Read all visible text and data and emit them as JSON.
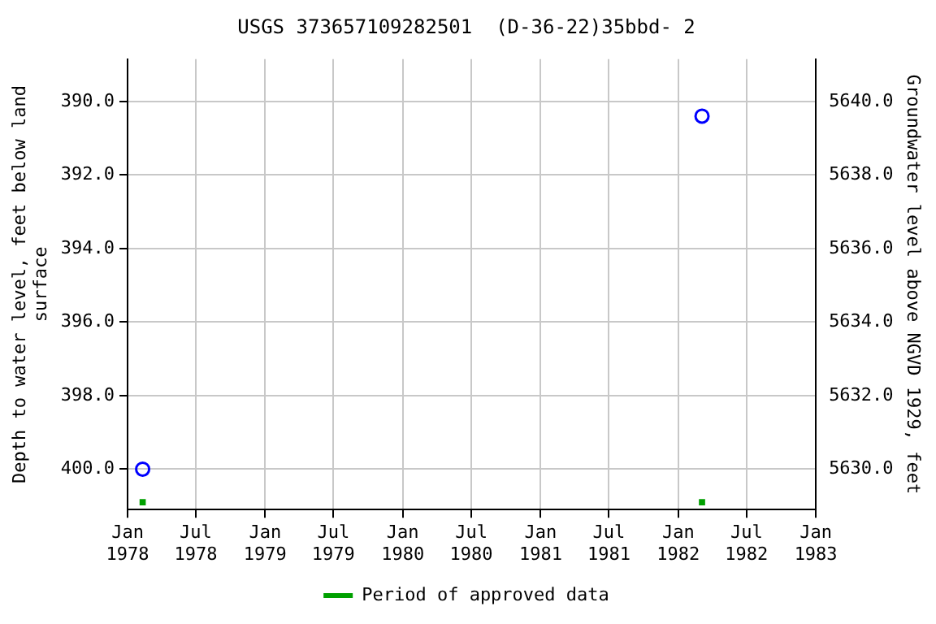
{
  "chart_data": {
    "type": "scatter",
    "title": "USGS 373657109282501  (D-36-22)35bbd- 2",
    "ylabel": "Depth to water level, feet below land surface",
    "y2label": "Groundwater level above NGVD 1929, feet",
    "series": [
      {
        "color": "#0000ff",
        "marker": "circle",
        "x": [
          "1978-02-10",
          "1982-03-05"
        ],
        "values": [
          400.0,
          390.4
        ]
      },
      {
        "name": "Period of approved data",
        "color": "#00a000",
        "marker": "square",
        "x": [
          "1978-02-10",
          "1982-03-05"
        ],
        "values": [
          400.9,
          400.9
        ]
      }
    ],
    "xlim": [
      "1978-01-01",
      "1983-01-01"
    ],
    "xticks": [
      {
        "value": "1978-01-01",
        "label": "Jan 1978"
      },
      {
        "value": "1978-07-01",
        "label": "Jul 1978"
      },
      {
        "value": "1979-01-01",
        "label": "Jan 1979"
      },
      {
        "value": "1979-07-01",
        "label": "Jul 1979"
      },
      {
        "value": "1980-01-01",
        "label": "Jan 1980"
      },
      {
        "value": "1980-07-01",
        "label": "Jul 1980"
      },
      {
        "value": "1981-01-01",
        "label": "Jan 1981"
      },
      {
        "value": "1981-07-01",
        "label": "Jul 1981"
      },
      {
        "value": "1982-01-01",
        "label": "Jan 1982"
      },
      {
        "value": "1982-07-01",
        "label": "Jul 1982"
      },
      {
        "value": "1983-01-01",
        "label": "Jan 1983"
      }
    ],
    "ylim": [
      401.1,
      388.85
    ],
    "yticks": [
      {
        "value": 390,
        "label": "390.0"
      },
      {
        "value": 392,
        "label": "392.0"
      },
      {
        "value": 394,
        "label": "394.0"
      },
      {
        "value": 396,
        "label": "396.0"
      },
      {
        "value": 398,
        "label": "398.0"
      },
      {
        "value": 400,
        "label": "400.0"
      }
    ],
    "y2lim": [
      5628.9,
      5641.15
    ],
    "y2ticks": [
      {
        "value": 5630,
        "label": "5630.0"
      },
      {
        "value": 5632,
        "label": "5632.0"
      },
      {
        "value": 5634,
        "label": "5634.0"
      },
      {
        "value": 5636,
        "label": "5636.0"
      },
      {
        "value": 5638,
        "label": "5638.0"
      },
      {
        "value": 5640,
        "label": "5640.0"
      }
    ],
    "grid": true,
    "legend": "bottom"
  }
}
